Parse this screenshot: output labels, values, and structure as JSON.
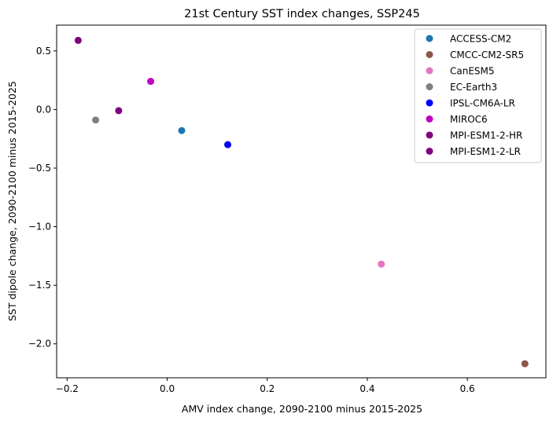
{
  "chart_data": {
    "type": "scatter",
    "title": "21st Century SST index changes, SSP245",
    "xlabel": "AMV index change, 2090-2100 minus 2015-2025",
    "ylabel": "SST dipole change, 2090-2100 minus 2015-2025",
    "xlim": [
      -0.221,
      0.757
    ],
    "ylim": [
      -2.29,
      0.72
    ],
    "xticks": [
      -0.2,
      0.0,
      0.2,
      0.4,
      0.6
    ],
    "xtick_labels": [
      "−0.2",
      "0.0",
      "0.2",
      "0.4",
      "0.6"
    ],
    "yticks": [
      0.5,
      0.0,
      -0.5,
      -1.0,
      -1.5,
      -2.0
    ],
    "ytick_labels": [
      "0.5",
      "0.0",
      "−0.5",
      "−1.0",
      "−1.5",
      "−2.0"
    ],
    "grid": false,
    "legend_position": "top-right",
    "series": [
      {
        "name": "ACCESS-CM2",
        "color": "#1f77b4",
        "x": 0.029,
        "y": -0.18
      },
      {
        "name": "CMCC-CM2-SR5",
        "color": "#8c564b",
        "x": 0.715,
        "y": -2.17
      },
      {
        "name": "CanESM5",
        "color": "#e377c2",
        "x": 0.428,
        "y": -1.32
      },
      {
        "name": "EC-Earth3",
        "color": "#7f7f7f",
        "x": -0.143,
        "y": -0.09
      },
      {
        "name": "IPSL-CM6A-LR",
        "color": "#0000ff",
        "x": 0.121,
        "y": -0.3
      },
      {
        "name": "MIROC6",
        "color": "#bf00bf",
        "x": -0.033,
        "y": 0.24
      },
      {
        "name": "MPI-ESM1-2-HR",
        "color": "#800080",
        "x": -0.178,
        "y": 0.59
      },
      {
        "name": "MPI-ESM1-2-LR",
        "color": "#800080",
        "x": -0.097,
        "y": -0.01
      }
    ]
  }
}
